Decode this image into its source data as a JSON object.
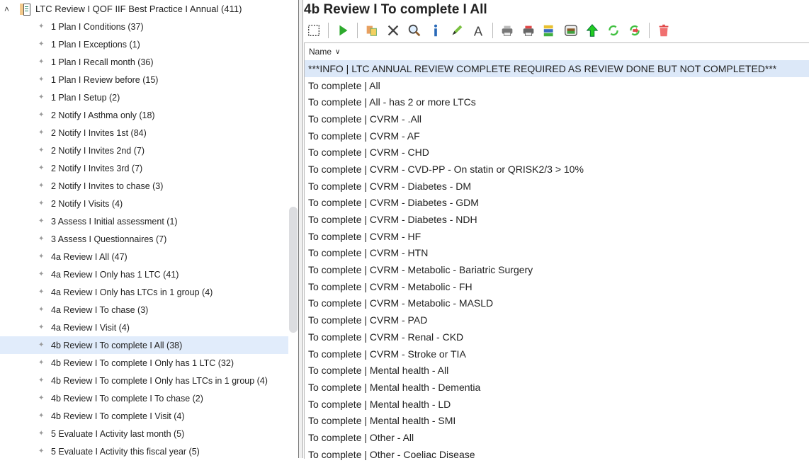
{
  "tree": {
    "root": {
      "label": "LTC Review I QOF IIF Best Practice I Annual (411)",
      "expanded": true,
      "icon": "report-book-icon"
    },
    "selected_index": 18,
    "items": [
      "1 Plan I Conditions (37)",
      "1 Plan I Exceptions (1)",
      "1 Plan I Recall month (36)",
      "1 Plan I Review before (15)",
      "1 Plan I Setup (2)",
      "2 Notify I Asthma only (18)",
      "2 Notify I Invites 1st (84)",
      "2 Notify I Invites 2nd (7)",
      "2 Notify I Invites 3rd (7)",
      "2 Notify I Invites to chase (3)",
      "2 Notify I Visits (4)",
      "3 Assess I Initial assessment (1)",
      "3 Assess I Questionnaires (7)",
      "4a Review I All (47)",
      "4a Review I Only has 1 LTC (41)",
      "4a Review I Only has LTCs in 1 group (4)",
      "4a Review I To chase (3)",
      "4a Review I Visit (4)",
      "4b Review I To complete I All (38)",
      "4b Review I To complete I Only has 1 LTC (32)",
      "4b Review I To complete I Only has LTCs in 1 group (4)",
      "4b Review I To complete I To chase (2)",
      "4b Review I To complete I Visit (4)",
      "5 Evaluate I Activity last month (5)",
      "5 Evaluate I Activity this fiscal year (5)"
    ]
  },
  "main": {
    "title": "4b Review I To complete I All",
    "toolbar": [
      "select-icon",
      "|",
      "run-icon",
      "|",
      "copy-icon",
      "delete-icon",
      "search-icon",
      "info-icon",
      "edit-icon",
      "font-icon",
      "|",
      "print-icon",
      "print-red-icon",
      "report-icon",
      "archive-icon",
      "move-up-icon",
      "refresh-icon",
      "refresh-red-icon",
      "|",
      "trash-icon"
    ],
    "column_header": "Name",
    "selected_index": 0,
    "rows": [
      "***INFO | LTC ANNUAL REVIEW COMPLETE REQUIRED AS REVIEW DONE BUT NOT COMPLETED***",
      "To complete | All",
      "To complete | All - has 2 or more LTCs",
      "To complete | CVRM - .All",
      "To complete | CVRM - AF",
      "To complete | CVRM - CHD",
      "To complete | CVRM - CVD-PP - On statin or QRISK2/3 > 10%",
      "To complete | CVRM - Diabetes - DM",
      "To complete | CVRM - Diabetes - GDM",
      "To complete | CVRM - Diabetes - NDH",
      "To complete | CVRM - HF",
      "To complete | CVRM - HTN",
      "To complete | CVRM - Metabolic - Bariatric Surgery",
      "To complete | CVRM - Metabolic - FH",
      "To complete | CVRM - Metabolic - MASLD",
      "To complete | CVRM - PAD",
      "To complete | CVRM - Renal - CKD",
      "To complete | CVRM - Stroke or TIA",
      "To complete | Mental health - All",
      "To complete | Mental health - Dementia",
      "To complete | Mental health - LD",
      "To complete | Mental health - SMI",
      "To complete | Other - All",
      "To complete | Other - Coeliac Disease"
    ]
  },
  "colors": {
    "selection_tree": "#e1ecfb",
    "selection_list": "#dce8f8",
    "run_green": "#2eaa2e",
    "trash_red": "#e04848"
  }
}
